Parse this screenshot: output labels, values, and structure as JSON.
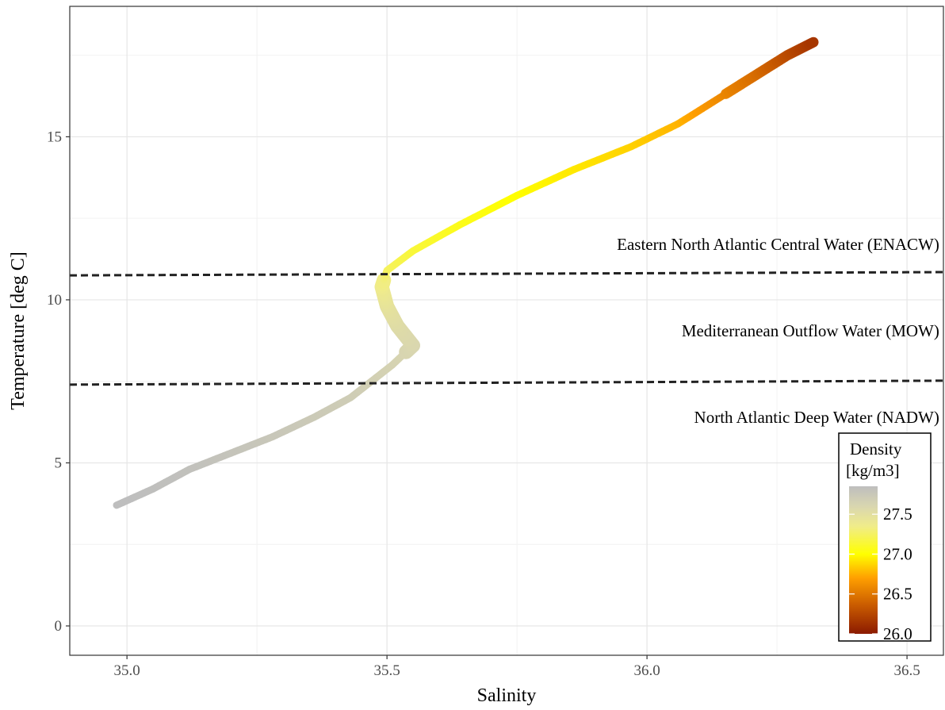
{
  "chart_data": {
    "type": "scatter",
    "xlabel": "Salinity",
    "ylabel": "Temperature [deg C]",
    "xlim": [
      34.89,
      36.57
    ],
    "ylim": [
      -0.9,
      19.0
    ],
    "x_ticks": [
      35.0,
      35.5,
      36.0,
      36.5
    ],
    "x_tick_labels": [
      "35.0",
      "35.5",
      "36.0",
      "36.5"
    ],
    "y_ticks": [
      0,
      5,
      10,
      15
    ],
    "y_tick_labels": [
      "0",
      "5",
      "10",
      "15"
    ],
    "grid": true,
    "profile": {
      "description": "T-S profile points colored by density",
      "points": [
        {
          "salinity": 34.98,
          "temperature": 3.7,
          "density": 27.85
        },
        {
          "salinity": 35.05,
          "temperature": 4.2,
          "density": 27.84
        },
        {
          "salinity": 35.12,
          "temperature": 4.8,
          "density": 27.82
        },
        {
          "salinity": 35.2,
          "temperature": 5.3,
          "density": 27.79
        },
        {
          "salinity": 35.28,
          "temperature": 5.8,
          "density": 27.76
        },
        {
          "salinity": 35.36,
          "temperature": 6.4,
          "density": 27.73
        },
        {
          "salinity": 35.43,
          "temperature": 7.0,
          "density": 27.7
        },
        {
          "salinity": 35.47,
          "temperature": 7.5,
          "density": 27.67
        },
        {
          "salinity": 35.51,
          "temperature": 8.0,
          "density": 27.64
        },
        {
          "salinity": 35.55,
          "temperature": 8.6,
          "density": 27.6
        },
        {
          "salinity": 35.52,
          "temperature": 9.2,
          "density": 27.55
        },
        {
          "salinity": 35.5,
          "temperature": 9.8,
          "density": 27.48
        },
        {
          "salinity": 35.49,
          "temperature": 10.4,
          "density": 27.38
        },
        {
          "salinity": 35.5,
          "temperature": 10.9,
          "density": 27.25
        },
        {
          "salinity": 35.55,
          "temperature": 11.5,
          "density": 27.15
        },
        {
          "salinity": 35.64,
          "temperature": 12.3,
          "density": 27.07
        },
        {
          "salinity": 35.75,
          "temperature": 13.2,
          "density": 27.0
        },
        {
          "salinity": 35.86,
          "temperature": 14.0,
          "density": 26.93
        },
        {
          "salinity": 35.97,
          "temperature": 14.7,
          "density": 26.86
        },
        {
          "salinity": 36.06,
          "temperature": 15.4,
          "density": 26.77
        },
        {
          "salinity": 36.14,
          "temperature": 16.2,
          "density": 26.6
        },
        {
          "salinity": 36.21,
          "temperature": 16.9,
          "density": 26.45
        },
        {
          "salinity": 36.27,
          "temperature": 17.5,
          "density": 26.28
        },
        {
          "salinity": 36.32,
          "temperature": 17.9,
          "density": 26.15
        }
      ]
    },
    "reference_lines": [
      {
        "style": "dashed",
        "points": [
          [
            34.89,
            10.75
          ],
          [
            36.57,
            10.85
          ]
        ]
      },
      {
        "style": "dashed",
        "points": [
          [
            34.89,
            7.4
          ],
          [
            36.57,
            7.52
          ]
        ]
      }
    ],
    "annotations": [
      {
        "text": "Eastern North Atlantic Central Water (ENACW)",
        "salinity": 36.55,
        "temperature": 11.7
      },
      {
        "text": "Mediterranean Outflow Water (MOW)",
        "salinity": 36.55,
        "temperature": 9.05
      },
      {
        "text": "North Atlantic Deep Water (NADW)",
        "salinity": 36.55,
        "temperature": 6.4
      }
    ],
    "legend": {
      "title": "Density",
      "units": "[kg/m3]",
      "placement": "bottom-right inside",
      "range": [
        26.0,
        27.85
      ],
      "ticks": [
        27.5,
        27.0,
        26.5,
        26.0
      ],
      "tick_labels": [
        "27.5",
        "27.0",
        "26.5",
        "26.0"
      ]
    },
    "colorscale": [
      {
        "density": 26.0,
        "color": "#8b1a00"
      },
      {
        "density": 26.35,
        "color": "#c85a00"
      },
      {
        "density": 26.7,
        "color": "#ff9f00"
      },
      {
        "density": 27.0,
        "color": "#ffff00"
      },
      {
        "density": 27.35,
        "color": "#f0ec8a"
      },
      {
        "density": 27.6,
        "color": "#d9d6b0"
      },
      {
        "density": 27.85,
        "color": "#bebebe"
      }
    ]
  }
}
